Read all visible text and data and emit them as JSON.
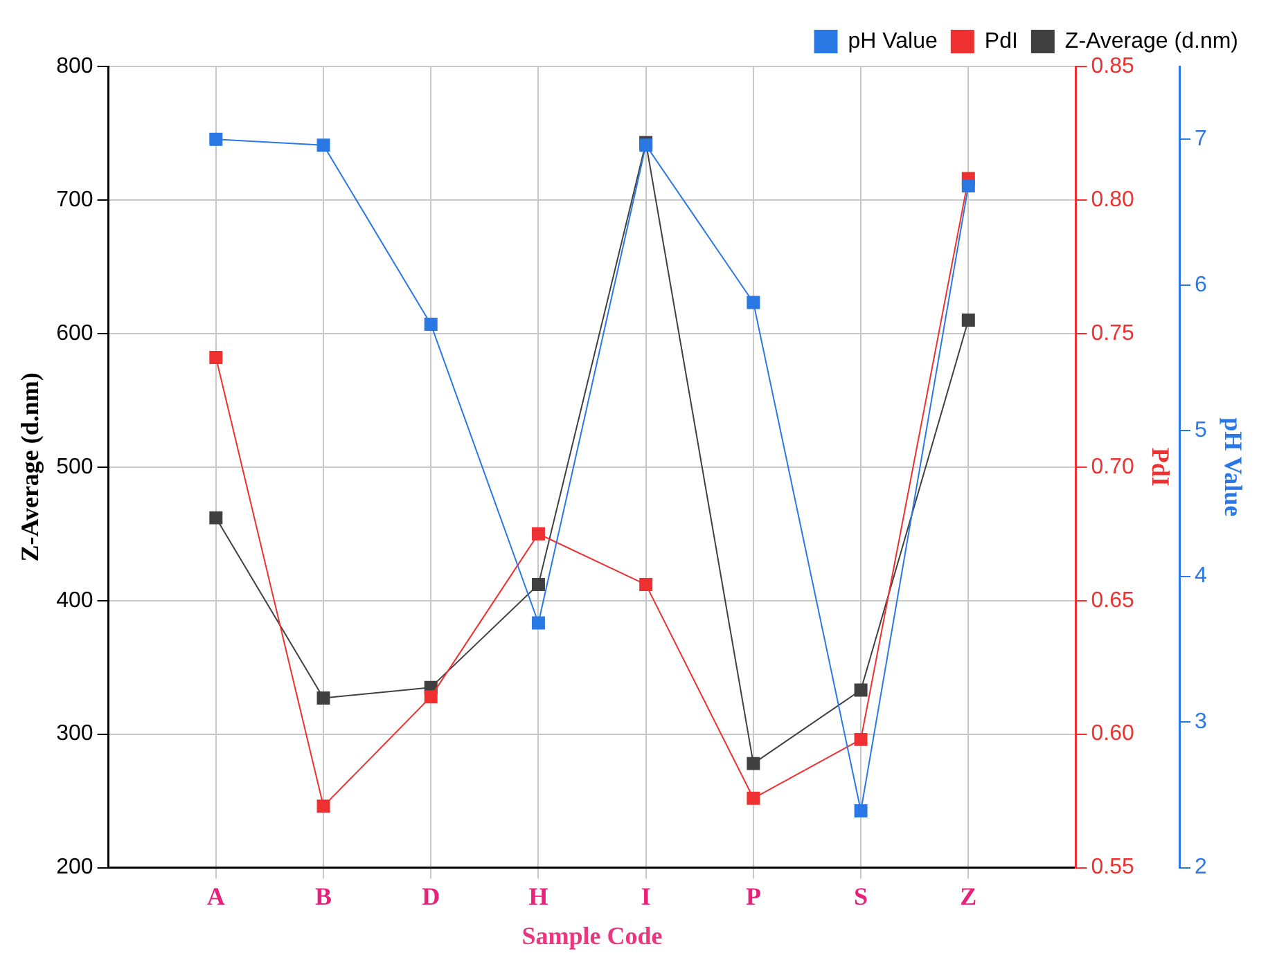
{
  "chart_data": {
    "type": "line",
    "xlabel": "Sample Code",
    "ylabel": "Z-Average (d.nm)",
    "y2label": "PdI",
    "y3label": "pH Value",
    "categories": [
      "A",
      "B",
      "D",
      "H",
      "I",
      "P",
      "S",
      "Z"
    ],
    "series": [
      {
        "name": "Z-Average (d.nm)",
        "color": "#404040",
        "values": [
          462,
          327,
          335,
          412,
          743,
          278,
          333,
          610
        ]
      },
      {
        "name": "PdI",
        "color": "#ee3030",
        "axis": "y2",
        "values": [
          0.741,
          0.573,
          0.614,
          0.675,
          0.656,
          0.576,
          0.598,
          0.808
        ]
      },
      {
        "name": "pH Value",
        "color": "#2a78e4",
        "axis": "y3",
        "values": [
          7.0,
          6.96,
          5.73,
          3.68,
          6.96,
          5.88,
          2.39,
          6.68
        ]
      }
    ],
    "ylim": [
      200,
      800
    ],
    "yticks": [
      200,
      300,
      400,
      500,
      600,
      700,
      800
    ],
    "y2lim": [
      0.55,
      0.85
    ],
    "y2ticks": [
      0.55,
      {
        "value": 0.6,
        "label": "0.60"
      },
      0.65,
      {
        "value": 0.7,
        "label": "0.70"
      },
      0.75,
      {
        "value": 0.8,
        "label": "0.80"
      },
      0.85
    ],
    "y3lim": [
      2,
      7.5
    ],
    "y3ticks": [
      2,
      3,
      4,
      5,
      6,
      7
    ],
    "grid": true,
    "legend": "top right",
    "marker": "square",
    "line_style": "solid"
  }
}
